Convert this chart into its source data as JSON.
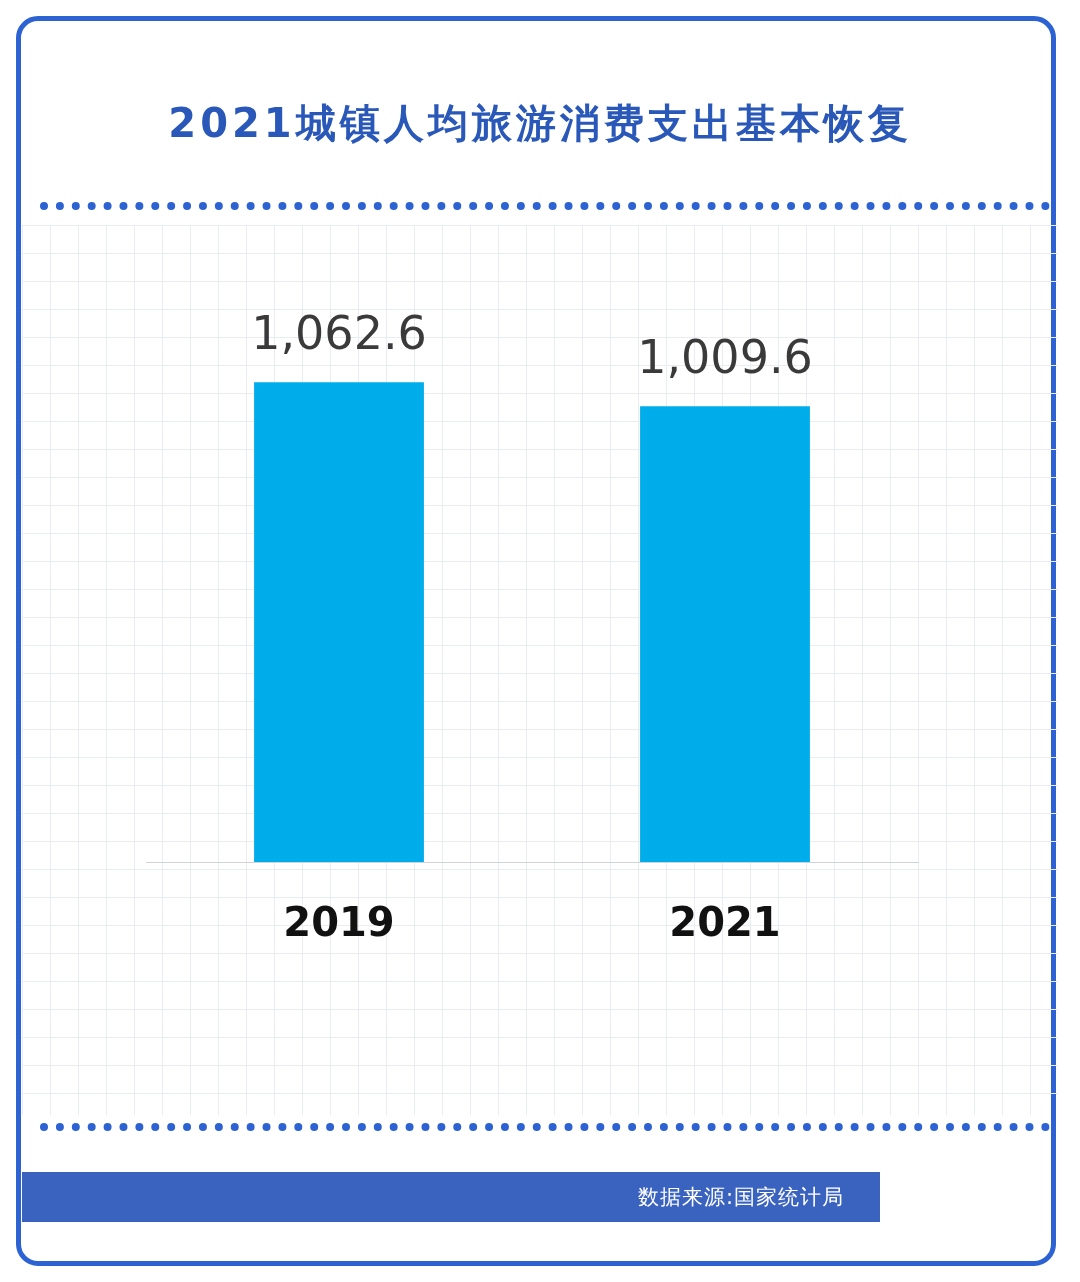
{
  "chart_data": {
    "type": "bar",
    "title": "2021城镇人均旅游消费支出基本恢复",
    "categories": [
      "2019",
      "2021"
    ],
    "values": [
      1062.6,
      1009.6
    ],
    "value_labels": [
      "1,062.6",
      "1,009.6"
    ],
    "color": "#00adeb",
    "grid": false,
    "legend": false,
    "annotations": [
      "数据来源:国家统计局"
    ]
  }
}
